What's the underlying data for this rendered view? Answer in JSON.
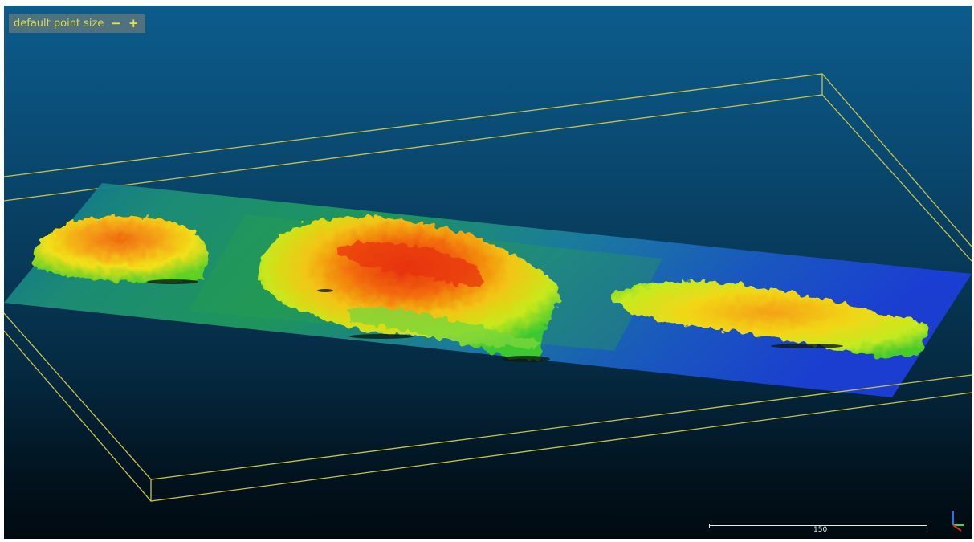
{
  "viewer": {
    "point_size_label": "default point size",
    "decrease_label": "−",
    "increase_label": "+",
    "scale_value": "150"
  },
  "colors": {
    "background_top": "#0c5c8c",
    "background_bottom": "#010a10",
    "bounding_box": "#c8c24a",
    "widget_text": "#d7dc4c",
    "ground_blue": "#1a4fd0",
    "canopy_high": "#e52a0c",
    "canopy_mid": "#f2d512",
    "canopy_low": "#4ec82c",
    "axis_x": "#e8261f",
    "axis_y": "#3ddc3d",
    "axis_z": "#2f6cf2"
  },
  "icons": {
    "axis_triad": "axis-triad-icon"
  }
}
